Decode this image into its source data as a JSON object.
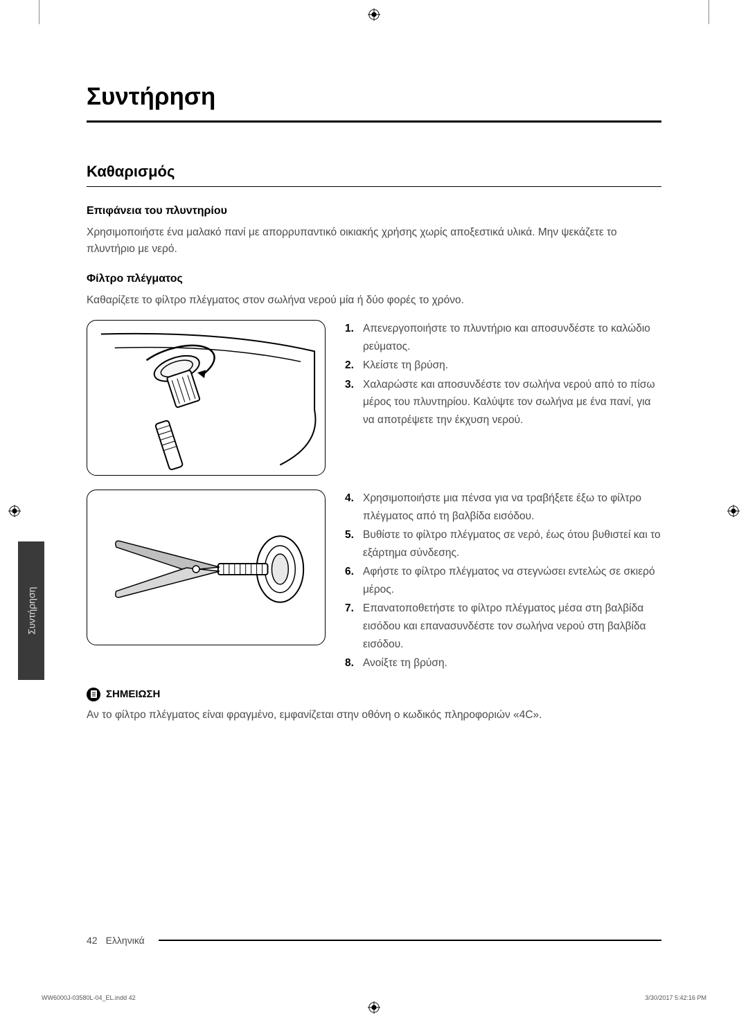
{
  "chapter_title": "Συντήρηση",
  "section_title": "Καθαρισμός",
  "surface": {
    "heading": "Επιφάνεια του πλυντηρίου",
    "text": "Χρησιμοποιήστε ένα μαλακό πανί με απορρυπαντικό οικιακής χρήσης χωρίς αποξεστικά υλικά. Μην ψεκάζετε το πλυντήριο με νερό."
  },
  "filter": {
    "heading": "Φίλτρο πλέγματος",
    "intro": "Καθαρίζετε το φίλτρο πλέγματος στον σωλήνα νερού μία ή δύο φορές το χρόνο.",
    "steps_a": [
      {
        "num": "1.",
        "text": "Απενεργοποιήστε το πλυντήριο και αποσυνδέστε το καλώδιο ρεύματος."
      },
      {
        "num": "2.",
        "text": "Κλείστε τη βρύση."
      },
      {
        "num": "3.",
        "text": "Χαλαρώστε και αποσυνδέστε τον σωλήνα νερού από το πίσω μέρος του πλυντηρίου. Καλύψτε τον σωλήνα με ένα πανί, για να αποτρέψετε την έκχυση νερού."
      }
    ],
    "steps_b": [
      {
        "num": "4.",
        "text": "Χρησιμοποιήστε μια πένσα για να τραβήξετε έξω το φίλτρο πλέγματος από τη βαλβίδα εισόδου."
      },
      {
        "num": "5.",
        "text": "Βυθίστε το φίλτρο πλέγματος σε νερό, έως ότου βυθιστεί και το εξάρτημα σύνδεσης."
      },
      {
        "num": "6.",
        "text": "Αφήστε το φίλτρο πλέγματος να στεγνώσει εντελώς σε σκιερό μέρος."
      },
      {
        "num": "7.",
        "text": "Επανατοποθετήστε το φίλτρο πλέγματος μέσα στη βαλβίδα εισόδου και επανασυνδέστε τον σωλήνα νερού στη βαλβίδα εισόδου."
      },
      {
        "num": "8.",
        "text": "Ανοίξτε τη βρύση."
      }
    ]
  },
  "note": {
    "label": "ΣΗΜΕΙΩΣΗ",
    "text": "Αν το φίλτρο πλέγματος είναι φραγμένο, εμφανίζεται στην οθόνη ο κωδικός πληροφοριών «4C»."
  },
  "side_tab": "Συντήρηση",
  "footer": {
    "page": "42",
    "lang": "Ελληνικά"
  },
  "print": {
    "file": "WW6000J-03580L-04_EL.indd   42",
    "timestamp": "3/30/2017   5:42:16 PM"
  },
  "colors": {
    "text_body": "#4a4a4a",
    "text_heading": "#000000",
    "tab_bg": "#3a3a3a",
    "tab_text": "#dddddd"
  }
}
